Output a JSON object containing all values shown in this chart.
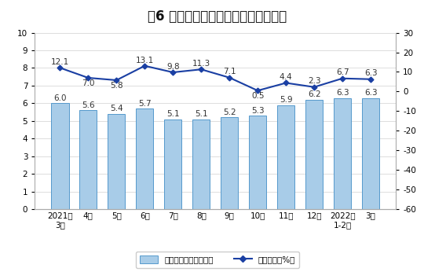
{
  "title": "图6 规模以上工业天然气产量月度走势",
  "categories": [
    "2021年\n3月",
    "4月",
    "5月",
    "6月",
    "7月",
    "8月",
    "9月",
    "10月",
    "11月",
    "12月",
    "2022年\n1-2月",
    "3月"
  ],
  "bar_values": [
    6.0,
    5.6,
    5.4,
    5.7,
    5.1,
    5.1,
    5.2,
    5.3,
    5.9,
    6.2,
    6.3,
    6.3
  ],
  "bar_labels": [
    "6.0",
    "5.6",
    "5.4",
    "5.7",
    "5.1",
    "5.1",
    "5.2",
    "5.3",
    "5.9",
    "6.2",
    "6.3",
    "6.3"
  ],
  "line_values": [
    12.1,
    7.0,
    5.8,
    13.1,
    9.8,
    11.3,
    7.1,
    0.5,
    4.4,
    2.3,
    6.7,
    6.3
  ],
  "line_labels": [
    "12.1",
    "7.0",
    "5.8",
    "13.1",
    "9.8",
    "11.3",
    "7.1",
    "0.5",
    "4.4",
    "2.3",
    "6.7",
    "6.3"
  ],
  "bar_color": "#a8cce8",
  "bar_edge_color": "#5599cc",
  "line_color": "#1a3fa3",
  "marker_color": "#1a3fa3",
  "left_ylim": [
    0,
    10
  ],
  "left_yticks": [
    0,
    1,
    2,
    3,
    4,
    5,
    6,
    7,
    8,
    9,
    10
  ],
  "right_ylim": [
    -60,
    30
  ],
  "right_yticks": [
    -60,
    -50,
    -40,
    -30,
    -20,
    -10,
    0,
    10,
    20,
    30
  ],
  "legend_bar_label": "日均产量（亿立方米）",
  "legend_line_label": "当月增速（%）",
  "title_fontsize": 12,
  "label_fontsize": 7.5,
  "tick_fontsize": 7.5,
  "background_color": "#ffffff",
  "grid_color": "#dddddd",
  "line_label_valign": [
    "bottom",
    "top",
    "top",
    "bottom",
    "bottom",
    "bottom",
    "bottom",
    "top",
    "bottom",
    "bottom",
    "bottom",
    "bottom"
  ]
}
